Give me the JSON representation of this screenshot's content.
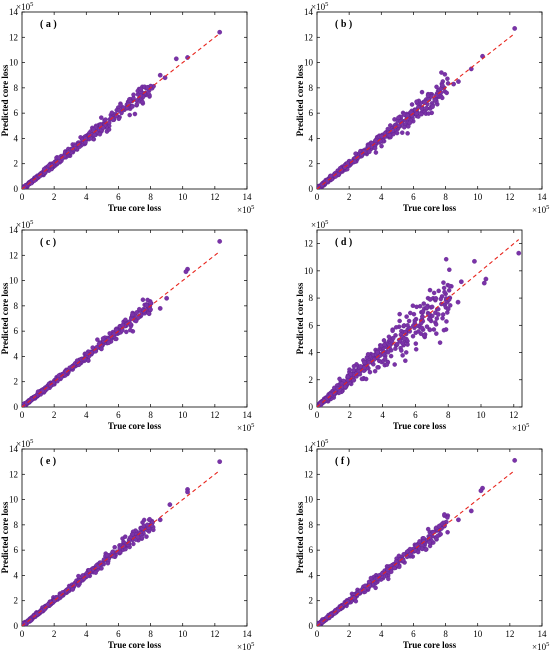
{
  "figure": {
    "marker_color": "#7a33a8",
    "marker_edge": "#5b1f86",
    "fit_line_color": "#e8241c",
    "axis_color": "#000000"
  },
  "chart_data": [
    {
      "type": "scatter",
      "panel_label": "( a )",
      "xlabel": "True core loss",
      "ylabel": "Predicted core loss",
      "x_exponent": "×10",
      "x_exponent_power": "5",
      "y_exponent": "×10",
      "y_exponent_power": "5",
      "xlim": [
        0,
        14
      ],
      "ylim": [
        0,
        14
      ],
      "xticks": [
        0,
        2,
        4,
        6,
        8,
        10,
        12,
        14
      ],
      "yticks": [
        0,
        2,
        4,
        6,
        8,
        10,
        12,
        14
      ],
      "grid": false,
      "reference_line": {
        "x": [
          0,
          12.3
        ],
        "y": [
          0,
          12.3
        ],
        "style": "dashed"
      },
      "spread": 0.055,
      "outliers": [
        [
          12.3,
          12.4
        ],
        [
          10.3,
          10.4
        ],
        [
          9.6,
          10.3
        ],
        [
          8.9,
          8.8
        ],
        [
          8.6,
          9.0
        ],
        [
          7.8,
          8.0
        ],
        [
          7.4,
          7.9
        ]
      ]
    },
    {
      "type": "scatter",
      "panel_label": "( b )",
      "xlabel": "True core loss",
      "ylabel": "Predicted core loss",
      "x_exponent": "×10",
      "x_exponent_power": "5",
      "y_exponent": "×10",
      "y_exponent_power": "5",
      "xlim": [
        0,
        14
      ],
      "ylim": [
        0,
        14
      ],
      "xticks": [
        0,
        2,
        4,
        6,
        8,
        10,
        12,
        14
      ],
      "yticks": [
        0,
        2,
        4,
        6,
        8,
        10,
        12,
        14
      ],
      "grid": false,
      "reference_line": {
        "x": [
          0,
          12.3
        ],
        "y": [
          0,
          12.3
        ],
        "style": "dashed"
      },
      "spread": 0.065,
      "outliers": [
        [
          12.3,
          12.7
        ],
        [
          10.3,
          10.5
        ],
        [
          9.6,
          9.5
        ],
        [
          8.8,
          8.5
        ],
        [
          8.5,
          8.3
        ],
        [
          7.8,
          8.2
        ],
        [
          6.2,
          6.9
        ]
      ]
    },
    {
      "type": "scatter",
      "panel_label": "( c )",
      "xlabel": "True core loss",
      "ylabel": "Predicted core loss",
      "x_exponent": "×10",
      "x_exponent_power": "5",
      "y_exponent": "×10",
      "y_exponent_power": "5",
      "xlim": [
        0,
        14
      ],
      "ylim": [
        0,
        14
      ],
      "xticks": [
        0,
        2,
        4,
        6,
        8,
        10,
        12,
        14
      ],
      "yticks": [
        0,
        2,
        4,
        6,
        8,
        10,
        12,
        14
      ],
      "grid": false,
      "reference_line": {
        "x": [
          0,
          12.3
        ],
        "y": [
          0,
          12.3
        ],
        "style": "dashed"
      },
      "spread": 0.04,
      "outliers": [
        [
          12.3,
          13.1
        ],
        [
          10.3,
          10.9
        ],
        [
          10.2,
          10.7
        ],
        [
          9.0,
          8.6
        ],
        [
          8.6,
          7.8
        ],
        [
          7.6,
          7.6
        ]
      ]
    },
    {
      "type": "scatter",
      "panel_label": "( d )",
      "xlabel": "True core loss",
      "ylabel": "Predicted core loss",
      "x_exponent": "×10",
      "x_exponent_power": "5",
      "y_exponent": "×10",
      "y_exponent_power": "5",
      "xlim": [
        0,
        12.5
      ],
      "ylim": [
        0,
        13
      ],
      "xticks": [
        0,
        2,
        4,
        6,
        8,
        10,
        12
      ],
      "yticks": [
        0,
        2,
        4,
        6,
        8,
        10,
        12
      ],
      "grid": false,
      "reference_line": {
        "x": [
          0,
          12.3
        ],
        "y": [
          0,
          12.3
        ],
        "style": "dashed"
      },
      "spread": 0.14,
      "outliers": [
        [
          12.3,
          11.3
        ],
        [
          10.3,
          9.4
        ],
        [
          10.2,
          9.1
        ],
        [
          9.6,
          10.7
        ],
        [
          8.8,
          9.2
        ],
        [
          8.6,
          7.7
        ],
        [
          8.0,
          7.2
        ],
        [
          7.4,
          6.8
        ],
        [
          6.9,
          7.9
        ],
        [
          6.4,
          5.8
        ]
      ]
    },
    {
      "type": "scatter",
      "panel_label": "( e )",
      "xlabel": "True core loss",
      "ylabel": "Predicted core loss",
      "x_exponent": "×10",
      "x_exponent_power": "5",
      "y_exponent": "×10",
      "y_exponent_power": "5",
      "xlim": [
        0,
        14
      ],
      "ylim": [
        0,
        14
      ],
      "xticks": [
        0,
        2,
        4,
        6,
        8,
        10,
        12,
        14
      ],
      "yticks": [
        0,
        2,
        4,
        6,
        8,
        10,
        12,
        14
      ],
      "grid": false,
      "reference_line": {
        "x": [
          0,
          12.3
        ],
        "y": [
          0,
          12.3
        ],
        "style": "dashed"
      },
      "spread": 0.04,
      "outliers": [
        [
          12.3,
          13.0
        ],
        [
          10.3,
          10.8
        ],
        [
          10.3,
          10.6
        ],
        [
          9.2,
          9.6
        ],
        [
          8.6,
          8.4
        ],
        [
          7.8,
          8.0
        ],
        [
          6.3,
          6.3
        ]
      ]
    },
    {
      "type": "scatter",
      "panel_label": "( f )",
      "xlabel": "True core loss",
      "ylabel": "Predicted core loss",
      "x_exponent": "×10",
      "x_exponent_power": "5",
      "y_exponent": "×10",
      "y_exponent_power": "5",
      "xlim": [
        0,
        14
      ],
      "ylim": [
        0,
        14
      ],
      "xticks": [
        0,
        2,
        4,
        6,
        8,
        10,
        12,
        14
      ],
      "yticks": [
        0,
        2,
        4,
        6,
        8,
        10,
        12,
        14
      ],
      "grid": false,
      "reference_line": {
        "x": [
          0,
          12.3
        ],
        "y": [
          0,
          12.3
        ],
        "style": "dashed"
      },
      "spread": 0.045,
      "outliers": [
        [
          12.3,
          13.1
        ],
        [
          10.3,
          10.9
        ],
        [
          10.2,
          10.7
        ],
        [
          9.6,
          9.1
        ],
        [
          8.8,
          8.4
        ],
        [
          7.6,
          7.9
        ]
      ]
    }
  ]
}
